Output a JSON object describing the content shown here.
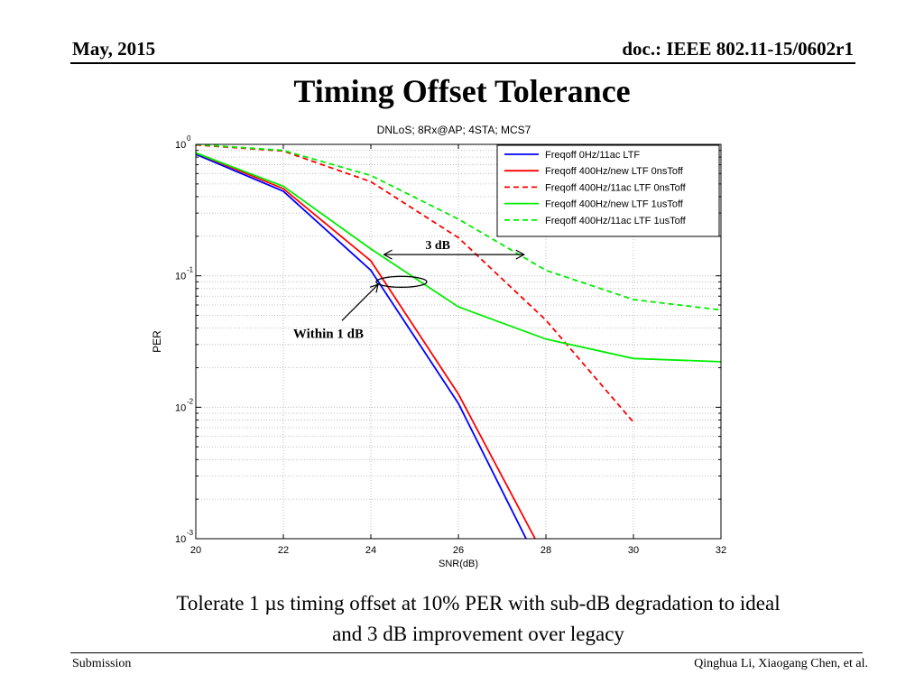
{
  "header": {
    "date": "May, 2015",
    "doc_id": "doc.: IEEE 802.11-15/0602r1"
  },
  "slide": {
    "title": "Timing Offset Tolerance",
    "caption_line1": "Tolerate 1 µs timing offset at 10% PER with sub-dB degradation to ideal",
    "caption_line2": "and 3 dB improvement over legacy"
  },
  "footer": {
    "left": "Submission",
    "right": "Qinghua Li, Xiaogang Chen, et al."
  },
  "chart_data": {
    "type": "line",
    "title": "DNLoS; 8Rx@AP; 4STA; MCS7",
    "xlabel": "SNR(dB)",
    "ylabel": "PER",
    "xlim": [
      20,
      32
    ],
    "ylim": [
      0.001,
      1
    ],
    "yscale": "log",
    "xticks": [
      20,
      22,
      24,
      26,
      28,
      30,
      32
    ],
    "yticks": [
      {
        "base": "10",
        "exp": "0"
      },
      {
        "base": "10",
        "exp": "-1"
      },
      {
        "base": "10",
        "exp": "-2"
      },
      {
        "base": "10",
        "exp": "-3"
      }
    ],
    "grid": true,
    "legend_position": "top-right",
    "series": [
      {
        "name": "Freqoff 0Hz/11ac LTF",
        "color": "#0000ff",
        "dash": "solid",
        "x": [
          20,
          22,
          24,
          26,
          28
        ],
        "y": [
          0.84,
          0.44,
          0.11,
          0.0107,
          0.0005
        ]
      },
      {
        "name": "Freqoff 400Hz/new LTF 0nsToff",
        "color": "#ff0000",
        "dash": "solid",
        "x": [
          20,
          22,
          24,
          26,
          28
        ],
        "y": [
          0.86,
          0.46,
          0.13,
          0.0126,
          0.0007
        ]
      },
      {
        "name": "Freqoff 400Hz/11ac LTF 0nsToff",
        "color": "#ff0000",
        "dash": "dashed",
        "x": [
          20,
          22,
          24,
          26,
          28,
          30
        ],
        "y": [
          0.99,
          0.89,
          0.52,
          0.195,
          0.046,
          0.0077
        ]
      },
      {
        "name": "Freqoff 400Hz/new LTF 1usToff",
        "color": "#00ee00",
        "dash": "solid",
        "x": [
          20,
          22,
          24,
          26,
          28,
          30,
          32
        ],
        "y": [
          0.86,
          0.48,
          0.16,
          0.058,
          0.033,
          0.0235,
          0.0222
        ]
      },
      {
        "name": "Freqoff 400Hz/11ac LTF 1usToff",
        "color": "#00ee00",
        "dash": "dashed",
        "x": [
          20,
          22,
          24,
          26,
          28,
          30,
          32
        ],
        "y": [
          1.0,
          0.9,
          0.58,
          0.27,
          0.11,
          0.066,
          0.055
        ]
      }
    ],
    "annotations": [
      {
        "text": "3 dB",
        "type": "double-arrow",
        "x_from": 24.3,
        "x_to": 27.5,
        "y": 0.145
      },
      {
        "text": "Within 1 dB",
        "type": "ellipse-pointer",
        "x": 24.7,
        "y": 0.09
      }
    ]
  }
}
